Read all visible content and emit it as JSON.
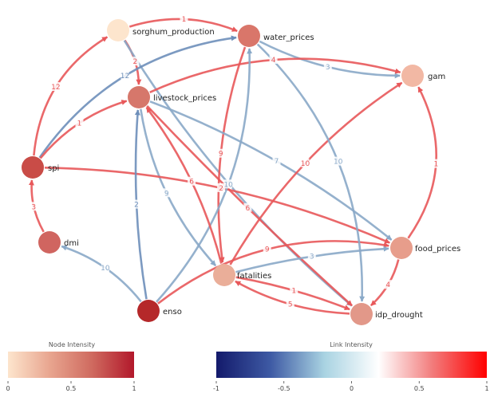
{
  "nodes": [
    {
      "id": "sorghum_production",
      "label": "sorghum_production",
      "color": "#fde5cd"
    },
    {
      "id": "water_prices",
      "label": "water_prices",
      "color": "#d9766a"
    },
    {
      "id": "gam",
      "label": "gam",
      "color": "#f2b8a4"
    },
    {
      "id": "livestock_prices",
      "label": "livestock_prices",
      "color": "#d6776b"
    },
    {
      "id": "spi",
      "label": "spi",
      "color": "#c94c47"
    },
    {
      "id": "dmi",
      "label": "dmi",
      "color": "#d06560"
    },
    {
      "id": "food_prices",
      "label": "food_prices",
      "color": "#e79d8b"
    },
    {
      "id": "fatalities",
      "label": "fatalities",
      "color": "#eaae99"
    },
    {
      "id": "enso",
      "label": "enso",
      "color": "#b5282a"
    },
    {
      "id": "idp_drought",
      "label": "idp_drought",
      "color": "#e29889"
    }
  ],
  "edges": [
    {
      "from": "sorghum_production",
      "to": "water_prices",
      "label": "1",
      "color": "#e8585a"
    },
    {
      "from": "sorghum_production",
      "to": "livestock_prices",
      "label": "2",
      "color": "#e8585a"
    },
    {
      "from": "sorghum_production",
      "to": "idp_drought",
      "label": "",
      "color": "#8aa9c8"
    },
    {
      "from": "water_prices",
      "to": "gam",
      "label": "3",
      "color": "#8aa9c8"
    },
    {
      "from": "water_prices",
      "to": "fatalities",
      "label": "9",
      "color": "#e8585a"
    },
    {
      "from": "livestock_prices",
      "to": "gam",
      "label": "4",
      "color": "#e8585a"
    },
    {
      "from": "livestock_prices",
      "to": "idp_drought",
      "label": "6",
      "color": "#e8585a"
    },
    {
      "from": "livestock_prices",
      "to": "food_prices",
      "label": "7",
      "color": "#8aa9c8"
    },
    {
      "from": "livestock_prices",
      "to": "fatalities",
      "label": "9",
      "color": "#8aa9c8"
    },
    {
      "from": "spi",
      "to": "sorghum_production",
      "label": "12",
      "color": "#e8585a"
    },
    {
      "from": "spi",
      "to": "water_prices",
      "label": "12",
      "color": "#6e8fba"
    },
    {
      "from": "spi",
      "to": "livestock_prices",
      "label": "1",
      "color": "#e8585a"
    },
    {
      "from": "spi",
      "to": "food_prices",
      "label": "2",
      "color": "#e8585a"
    },
    {
      "from": "dmi",
      "to": "spi",
      "label": "3",
      "color": "#e8585a"
    },
    {
      "from": "enso",
      "to": "dmi",
      "label": "10",
      "color": "#8aa9c8"
    },
    {
      "from": "enso",
      "to": "water_prices",
      "label": "10",
      "color": "#8aa9c8"
    },
    {
      "from": "enso",
      "to": "livestock_prices",
      "label": "2",
      "color": "#6e8fba"
    },
    {
      "from": "enso",
      "to": "food_prices",
      "label": "9",
      "color": "#e8585a"
    },
    {
      "from": "fatalities",
      "to": "livestock_prices",
      "label": "6",
      "color": "#e8585a"
    },
    {
      "from": "fatalities",
      "to": "gam",
      "label": "10",
      "color": "#e8585a"
    },
    {
      "from": "fatalities",
      "to": "idp_drought",
      "label": "1",
      "color": "#e8585a"
    },
    {
      "from": "food_prices",
      "to": "gam",
      "label": "1",
      "color": "#e8585a"
    },
    {
      "from": "food_prices",
      "to": "idp_drought",
      "label": "4",
      "color": "#e8585a"
    },
    {
      "from": "idp_drought",
      "to": "fatalities",
      "label": "5",
      "color": "#e8585a"
    },
    {
      "from": "fatalities",
      "to": "food_prices",
      "label": "3",
      "color": "#8aa9c8"
    },
    {
      "from": "water_prices",
      "to": "idp_drought",
      "label": "10",
      "color": "#8aa9c8"
    }
  ],
  "legend": {
    "node": {
      "title": "Node Intensity",
      "stops": [
        "#fde5cd",
        "#e8a58f",
        "#cf6a5f",
        "#b2182b"
      ],
      "ticks": [
        "0",
        "0.5",
        "1"
      ]
    },
    "link": {
      "title": "Link Intensity",
      "stops": [
        "#131a6b",
        "#3e5aa4",
        "#a9d3e2",
        "#ffffff",
        "#f27b7b",
        "#ff0000"
      ],
      "ticks": [
        "-1",
        "-0.5",
        "0",
        "0.5",
        "1"
      ]
    }
  }
}
